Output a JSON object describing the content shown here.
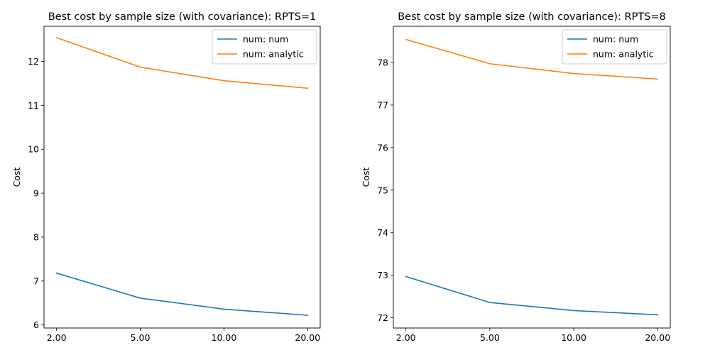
{
  "chart_data": [
    {
      "type": "line",
      "title": "Best cost by sample size (with covariance): RPTS=1",
      "xlabel": "",
      "ylabel": "Cost",
      "x": [
        "2.00",
        "5.00",
        "10.00",
        "20.00"
      ],
      "ylim": [
        5.93,
        12.8
      ],
      "yticks": [
        6,
        7,
        8,
        9,
        10,
        11,
        12
      ],
      "legend_position": "top-right",
      "series": [
        {
          "name": "num: num",
          "color": "#1f77b4",
          "values": [
            7.18,
            6.61,
            6.36,
            6.22
          ]
        },
        {
          "name": "num: analytic",
          "color": "#ff7f0e",
          "values": [
            12.54,
            11.87,
            11.56,
            11.39
          ]
        }
      ]
    },
    {
      "type": "line",
      "title": "Best cost by sample size (with covariance): RPTS=8",
      "xlabel": "",
      "ylabel": "Cost",
      "x": [
        "2.00",
        "5.00",
        "10.00",
        "20.00"
      ],
      "ylim": [
        71.76,
        78.85
      ],
      "yticks": [
        72,
        73,
        74,
        75,
        76,
        77,
        78
      ],
      "legend_position": "top-right",
      "series": [
        {
          "name": "num: num",
          "color": "#1f77b4",
          "values": [
            72.97,
            72.36,
            72.17,
            72.07
          ]
        },
        {
          "name": "num: analytic",
          "color": "#ff7f0e",
          "values": [
            78.54,
            77.97,
            77.74,
            77.61
          ]
        }
      ]
    }
  ]
}
